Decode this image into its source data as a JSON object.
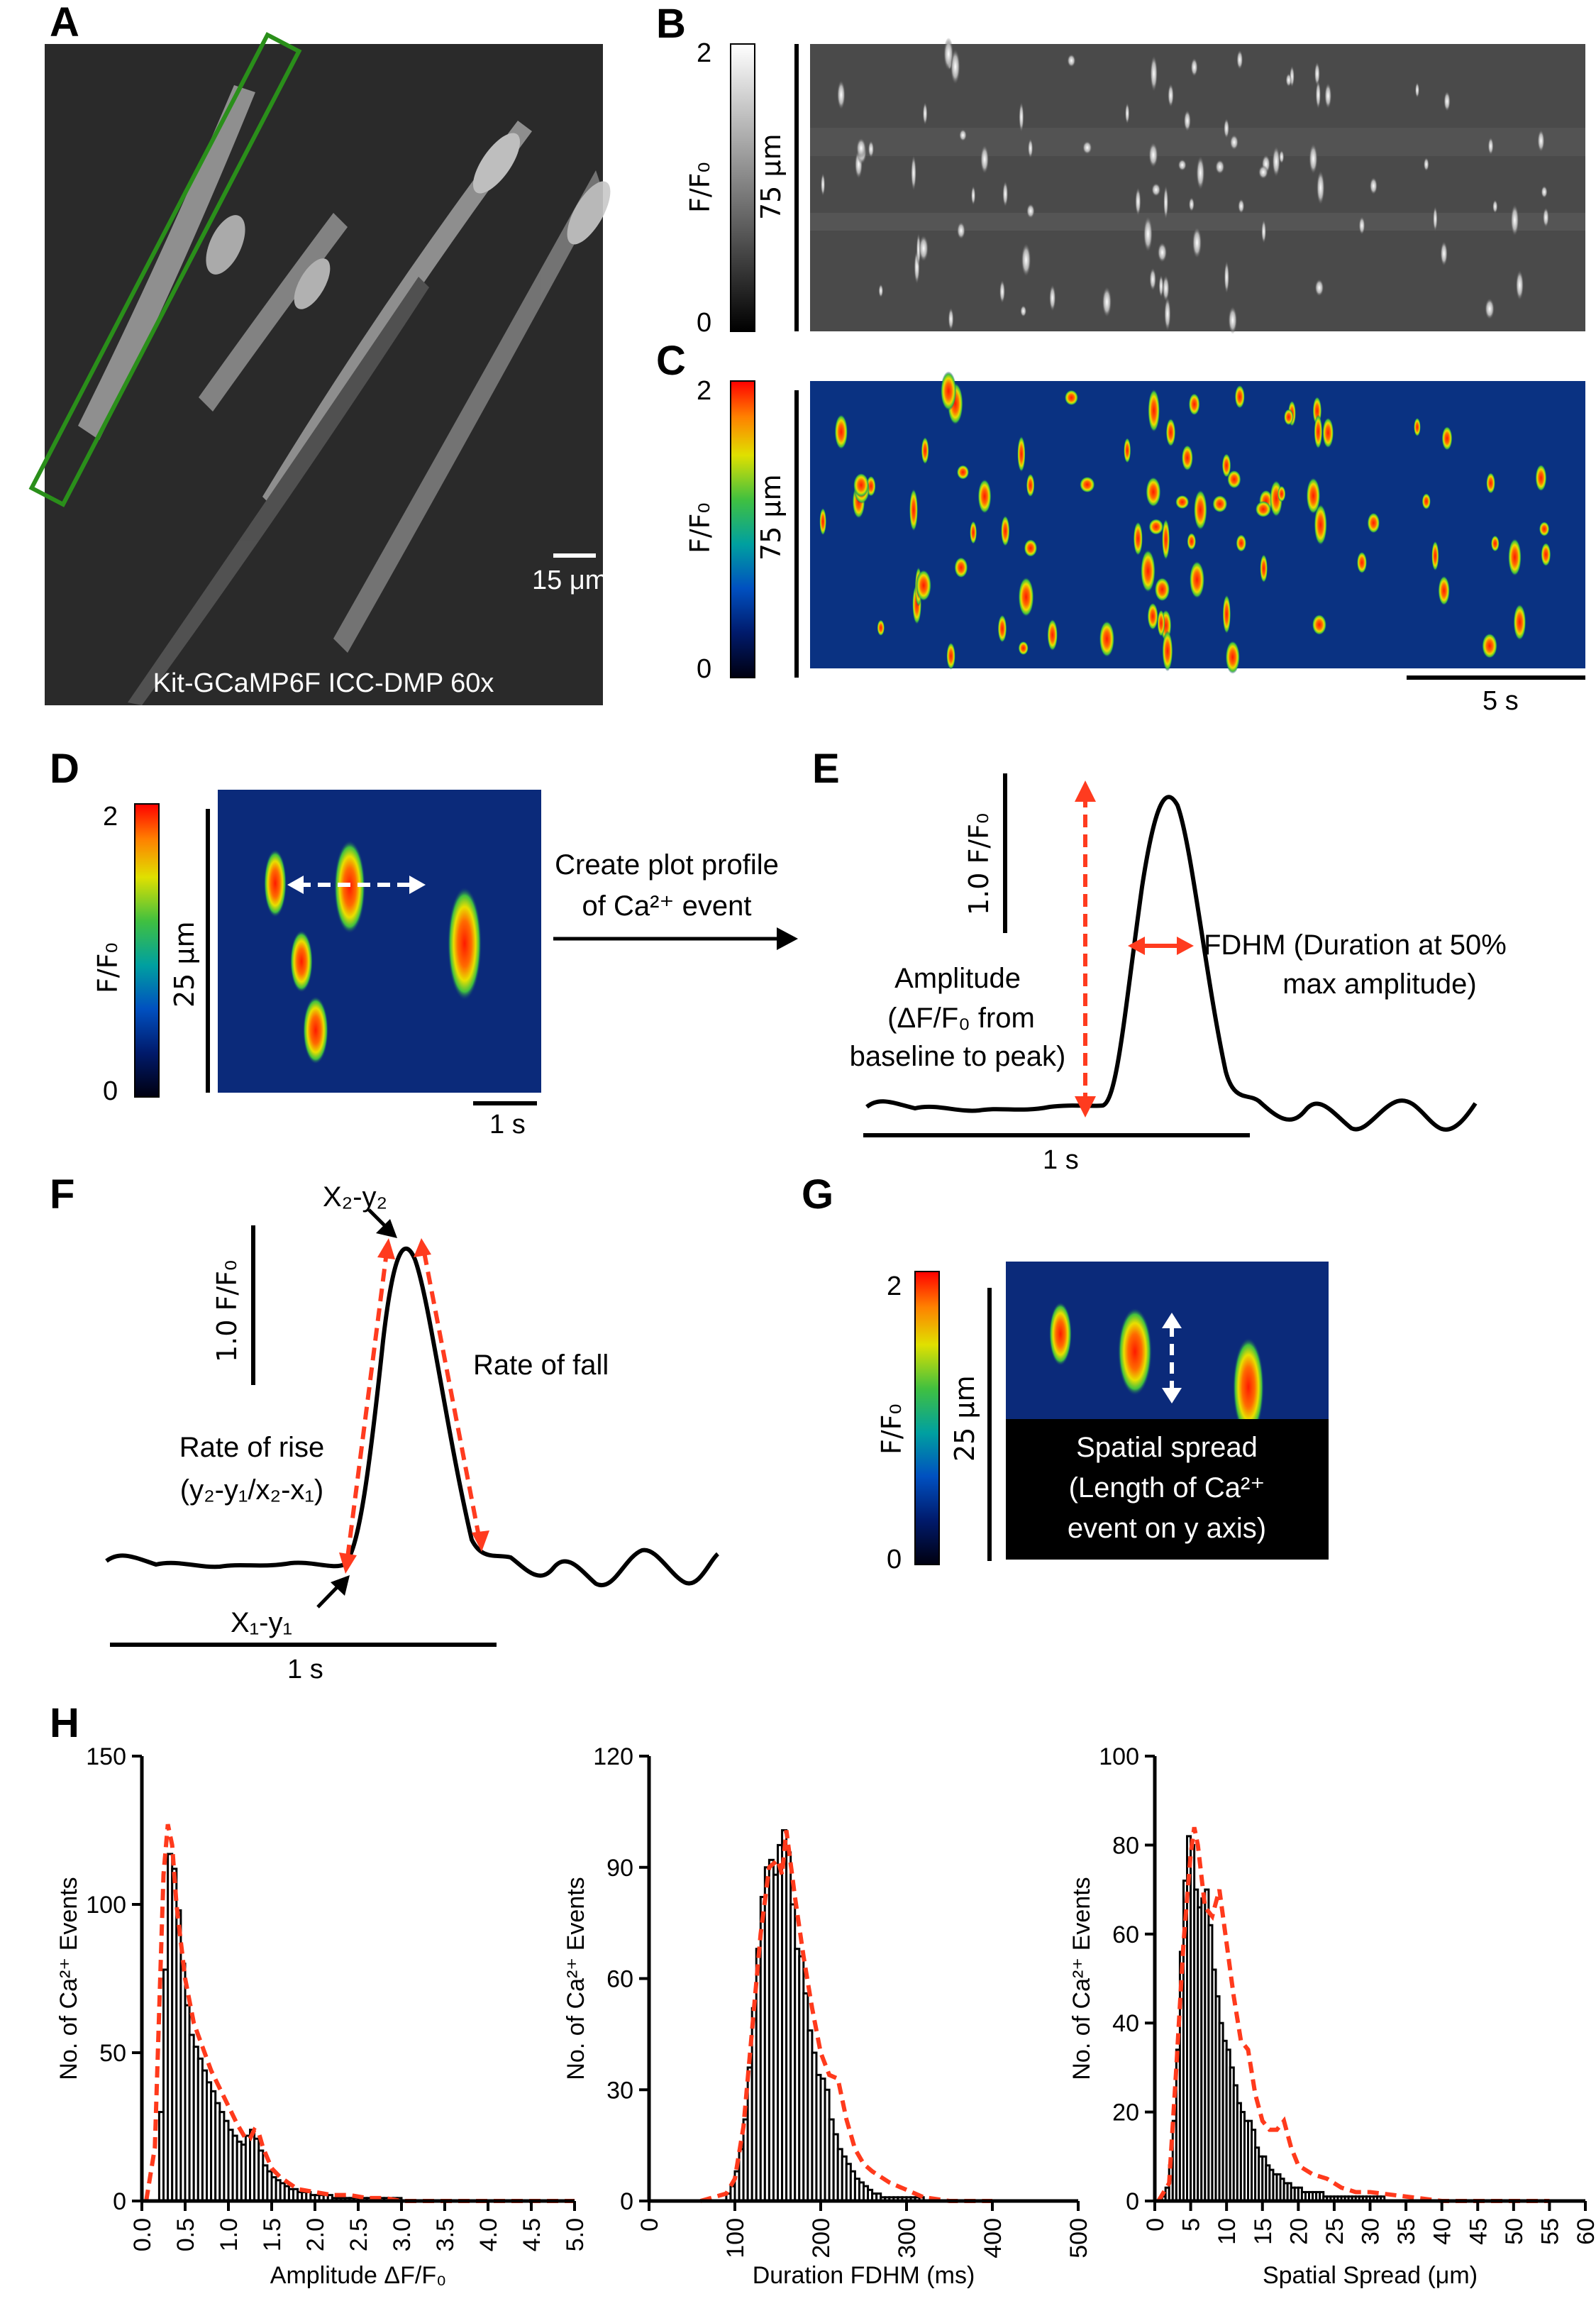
{
  "panels": {
    "a": {
      "letter": "A",
      "scale": "15 μm",
      "caption": "Kit-GCaMP6F ICC-DMP 60x"
    },
    "b": {
      "letter": "B",
      "cbar_top": "2",
      "cbar_bottom": "0",
      "cbar_label": "F/F₀",
      "ybar_label": "75 μm"
    },
    "c": {
      "letter": "C",
      "cbar_top": "2",
      "cbar_bottom": "0",
      "cbar_label": "F/F₀",
      "ybar_label": "75 μm",
      "time_bar": "5 s"
    },
    "d": {
      "letter": "D",
      "cbar_top": "2",
      "cbar_bottom": "0",
      "cbar_label": "F/F₀",
      "ybar_label": "25 μm",
      "time_bar": "1 s",
      "arrow_text_line1": "Create plot profile",
      "arrow_text_line2": "of Ca²⁺ event"
    },
    "e": {
      "letter": "E",
      "scale_label": "1.0 F/F₀",
      "time_bar": "1 s",
      "amp_line1": "Amplitude",
      "amp_line2": "(ΔF/F₀ from",
      "amp_line3": "baseline to peak)",
      "fdhm_line1": "FDHM (Duration at 50%",
      "fdhm_line2": "max amplitude)"
    },
    "f": {
      "letter": "F",
      "scale_label": "1.0 F/F₀",
      "time_bar": "1 s",
      "peak_label": "X₂-y₂",
      "start_label": "X₁-y₁",
      "rise_line1": "Rate of rise",
      "rise_line2": "(y₂-y₁/x₂-x₁)",
      "fall_label": "Rate of fall"
    },
    "g": {
      "letter": "G",
      "cbar_top": "2",
      "cbar_bottom": "0",
      "cbar_label": "F/F₀",
      "ybar_label": "25 μm",
      "box_line1": "Spatial spread",
      "box_line2": "(Length of Ca²⁺",
      "box_line3": "event on y axis)"
    },
    "h": {
      "letter": "H"
    }
  },
  "chart_data": [
    {
      "type": "bar",
      "title": "",
      "xlabel": "Amplitude ΔF/F₀",
      "ylabel": "No. of Ca²⁺ Events",
      "xlim": [
        0,
        5
      ],
      "ylim": [
        0,
        150
      ],
      "xticks": [
        "0.0",
        "0.5",
        "1.0",
        "1.5",
        "2.0",
        "2.5",
        "3.0",
        "3.5",
        "4.0",
        "4.5",
        "5.0"
      ],
      "yticks": [
        "0",
        "50",
        "100",
        "150"
      ],
      "bin_start": 0.0,
      "bin_width": 0.05,
      "values": [
        0,
        0,
        0,
        0,
        30,
        78,
        117,
        112,
        98,
        80,
        66,
        56,
        52,
        48,
        44,
        40,
        37,
        33,
        30,
        27,
        24,
        22,
        20,
        19,
        22,
        24,
        21,
        17,
        12,
        10,
        8,
        7,
        6,
        5,
        4,
        4,
        3,
        3,
        3,
        2,
        2,
        2,
        2,
        2,
        1,
        1,
        1,
        1,
        1,
        1,
        1,
        1,
        1,
        1,
        1,
        1,
        1,
        1,
        1,
        1,
        0,
        0,
        0,
        0,
        0,
        0,
        0,
        0,
        0,
        0,
        0,
        0,
        0,
        0,
        0,
        0,
        0,
        0,
        0,
        0,
        0,
        0,
        0,
        0,
        0,
        0,
        0,
        0,
        0,
        0,
        0,
        0,
        0,
        0,
        0,
        0,
        0,
        0,
        0,
        0
      ],
      "fit_x": [
        0.05,
        0.15,
        0.25,
        0.3,
        0.35,
        0.4,
        0.5,
        0.6,
        0.7,
        0.8,
        0.9,
        1.0,
        1.1,
        1.2,
        1.25,
        1.3,
        1.35,
        1.4,
        1.5,
        1.6,
        1.7,
        1.8,
        2.0,
        2.2,
        2.4,
        2.6,
        2.8,
        3.0,
        3.5,
        4.0,
        4.5,
        5.0
      ],
      "fit_y": [
        0,
        18,
        110,
        127,
        120,
        100,
        75,
        60,
        52,
        44,
        38,
        32,
        26,
        21,
        21,
        24,
        23,
        18,
        11,
        8,
        6,
        4,
        3,
        2,
        2,
        1,
        1,
        0,
        0,
        0,
        0,
        0
      ]
    },
    {
      "type": "bar",
      "title": "",
      "xlabel": "Duration FDHM (ms)",
      "ylabel": "No. of Ca²⁺ Events",
      "xlim": [
        0,
        500
      ],
      "ylim": [
        0,
        120
      ],
      "xticks": [
        "0",
        "100",
        "200",
        "300",
        "400",
        "500"
      ],
      "yticks": [
        "0",
        "30",
        "60",
        "90",
        "120"
      ],
      "bin_start": 90,
      "bin_width": 5,
      "values": [
        2,
        4,
        8,
        14,
        22,
        36,
        52,
        68,
        82,
        90,
        92,
        88,
        96,
        100,
        94,
        80,
        68,
        66,
        56,
        46,
        40,
        34,
        33,
        30,
        22,
        18,
        14,
        12,
        10,
        8,
        6,
        5,
        4,
        3,
        2,
        2,
        1,
        1,
        1,
        1,
        1,
        1,
        1,
        1,
        1,
        1
      ],
      "fit_x": [
        60,
        90,
        100,
        110,
        120,
        130,
        140,
        150,
        155,
        160,
        170,
        180,
        190,
        200,
        210,
        220,
        230,
        240,
        250,
        260,
        280,
        300,
        320,
        350,
        400
      ],
      "fit_y": [
        0,
        2,
        6,
        20,
        46,
        72,
        90,
        92,
        88,
        100,
        82,
        66,
        52,
        40,
        34,
        33,
        22,
        14,
        10,
        8,
        5,
        3,
        1,
        0,
        0
      ]
    },
    {
      "type": "bar",
      "title": "",
      "xlabel": "Spatial Spread (μm)",
      "ylabel": "No. of Ca²⁺ Events",
      "xlim": [
        0,
        60
      ],
      "ylim": [
        0,
        100
      ],
      "xticks": [
        "0",
        "5",
        "10",
        "15",
        "20",
        "25",
        "30",
        "35",
        "40",
        "45",
        "50",
        "55",
        "60"
      ],
      "yticks": [
        "0",
        "20",
        "40",
        "60",
        "80",
        "100"
      ],
      "bin_start": 1.0,
      "bin_width": 0.5,
      "values": [
        1,
        3,
        8,
        18,
        34,
        56,
        72,
        82,
        80,
        70,
        66,
        68,
        70,
        62,
        52,
        46,
        40,
        36,
        34,
        30,
        26,
        22,
        20,
        18,
        18,
        16,
        12,
        10,
        10,
        8,
        7,
        6,
        6,
        5,
        4,
        4,
        3,
        3,
        3,
        2,
        2,
        2,
        2,
        2,
        2,
        1,
        1,
        1,
        1,
        1,
        1,
        1,
        1,
        1,
        1,
        1,
        1,
        1,
        1,
        1,
        1,
        1
      ],
      "fit_x": [
        0.5,
        2,
        3,
        4,
        5,
        5.5,
        6,
        7,
        8,
        9,
        10,
        11,
        12,
        13,
        14,
        15,
        16,
        17,
        18,
        19,
        20,
        22,
        24,
        26,
        28,
        30,
        35,
        40,
        45,
        50,
        55
      ],
      "fit_y": [
        0,
        4,
        30,
        58,
        78,
        84,
        80,
        66,
        64,
        70,
        58,
        46,
        36,
        34,
        24,
        18,
        16,
        16,
        18,
        12,
        8,
        6,
        5,
        3,
        2,
        2,
        1,
        0,
        0,
        0,
        0
      ]
    }
  ],
  "colors": {
    "red_arrow": "#ff3b1f",
    "green_roi": "#2a8f1a",
    "fit_line": "#ff3a1c",
    "bar_fill": "#ffffff",
    "bar_stroke": "#000000",
    "dark_box": "#000000"
  }
}
